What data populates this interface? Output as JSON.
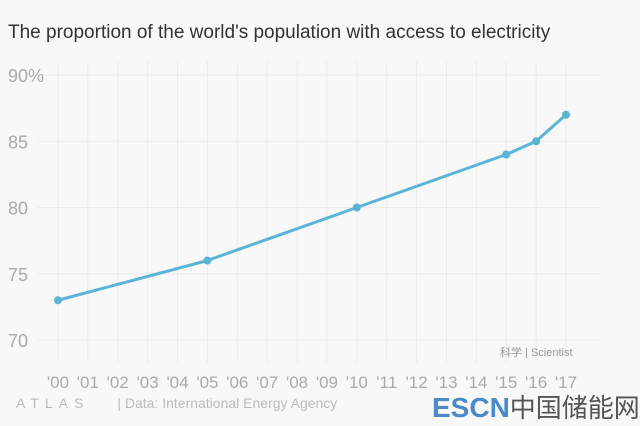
{
  "chart_data": {
    "type": "line",
    "title": "The proportion of the world's population with access to electricity",
    "x_tick_labels": [
      "'00",
      "'01",
      "'02",
      "'03",
      "'04",
      "'05",
      "'06",
      "'07",
      "'08",
      "'09",
      "'10",
      "'11",
      "'12",
      "'13",
      "'14",
      "'15",
      "'16",
      "'17"
    ],
    "y_tick_labels": [
      "90%",
      "85",
      "80",
      "75",
      "70"
    ],
    "y_ticks": [
      90,
      85,
      80,
      75,
      70
    ],
    "xlim": [
      2000,
      2017
    ],
    "ylim": [
      70,
      90
    ],
    "grid": true,
    "series": [
      {
        "x": [
          2000,
          2005,
          2010,
          2015,
          2016,
          2017
        ],
        "values": [
          73,
          76,
          80,
          84,
          85,
          87
        ],
        "color": "#5ab4d6"
      }
    ]
  },
  "footer": {
    "brand": "ATLAS",
    "source": "| Data: International Energy Agency",
    "watermark": "科学 | Scientist",
    "logo_en": "ESCN",
    "logo_cn": "中国储能网"
  }
}
